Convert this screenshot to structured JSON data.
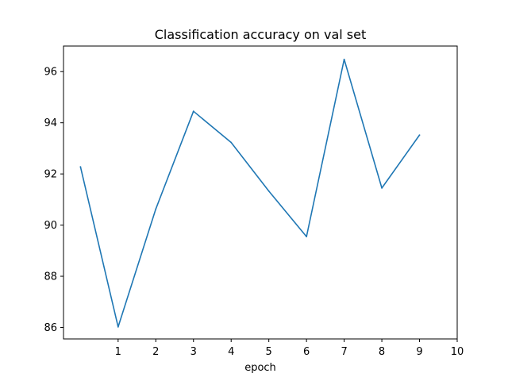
{
  "chart_data": {
    "type": "line",
    "title": "Classification accuracy on val set",
    "xlabel": "epoch",
    "ylabel": "",
    "x": [
      0,
      1,
      2,
      3,
      4,
      5,
      6,
      7,
      8,
      9
    ],
    "series": [
      {
        "values": [
          92.28,
          86.02,
          90.63,
          94.45,
          93.23,
          91.33,
          89.55,
          96.48,
          91.45,
          93.52
        ]
      }
    ],
    "xlim": [
      -0.45,
      10.0
    ],
    "ylim": [
      85.55,
      97.0
    ],
    "xticks": [
      1,
      2,
      3,
      4,
      5,
      6,
      7,
      8,
      9,
      10
    ],
    "yticks": [
      86,
      88,
      90,
      92,
      94,
      96
    ],
    "grid": false,
    "line_color": "#1f77b4"
  }
}
